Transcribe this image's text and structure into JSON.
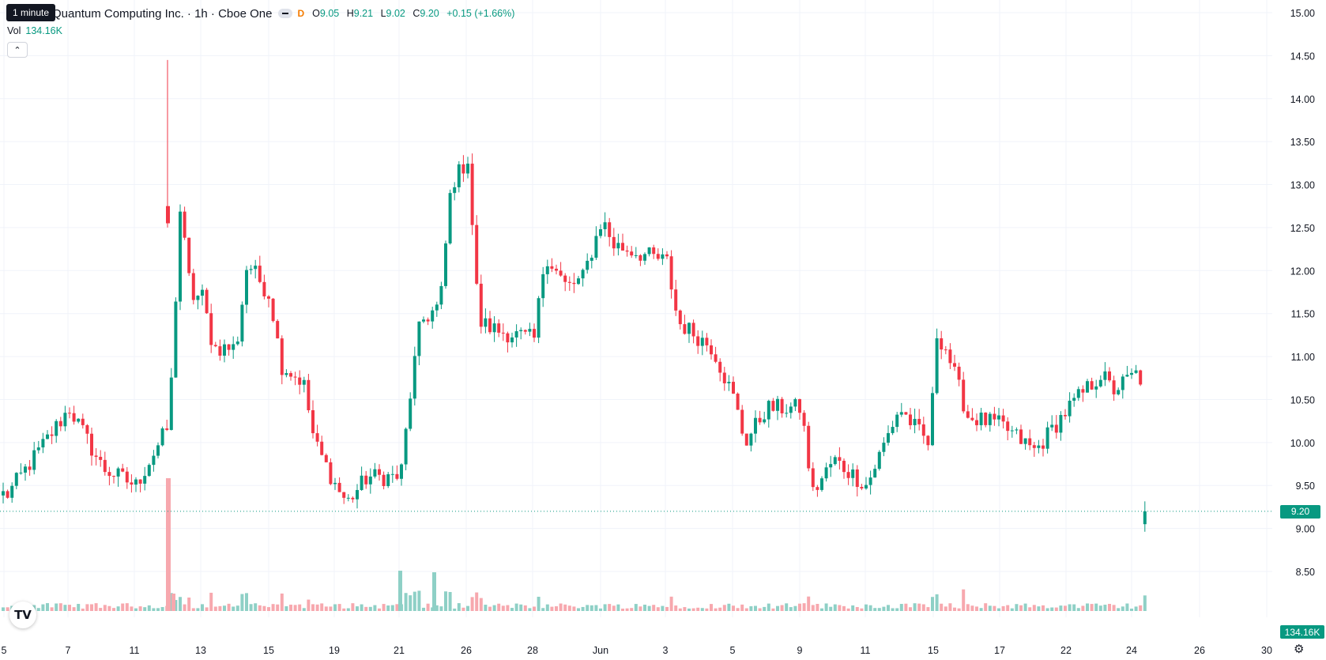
{
  "header": {
    "title": "Quantum Computing Inc. · 1h · Cboe One",
    "tooltip": "1 minute",
    "d_badge": "D",
    "ohlc": {
      "o_label": "O",
      "o": "9.05",
      "h_label": "H",
      "h": "9.21",
      "l_label": "L",
      "l": "9.02",
      "c_label": "C",
      "c": "9.20",
      "change": "+0.15 (+1.66%)"
    }
  },
  "volume_legend": {
    "label": "Vol",
    "value": "134.16K"
  },
  "price_tags": {
    "last_price": "9.20",
    "last_volume": "134.16K"
  },
  "colors": {
    "up": "#089981",
    "down": "#f23645",
    "up_volume": "#8ed0c6",
    "down_volume": "#f7a8ae",
    "grid": "#f0f3fa",
    "last_price_line": "#089981"
  },
  "icons": {
    "logo": "tradingview-logo-icon",
    "settings": "gear-icon",
    "collapse": "chevron-up-icon"
  },
  "chart_data": {
    "type": "candlestick",
    "y_axis": {
      "range": [
        8.3,
        15.05
      ],
      "ticks": [
        "15.00",
        "14.50",
        "14.00",
        "13.50",
        "13.00",
        "12.50",
        "12.00",
        "11.50",
        "11.00",
        "10.50",
        "10.00",
        "9.50",
        "9.00",
        "8.50"
      ]
    },
    "x_axis": {
      "ticks": [
        "5",
        "7",
        "11",
        "13",
        "15",
        "19",
        "21",
        "26",
        "28",
        "Jun",
        "3",
        "5",
        "9",
        "11",
        "15",
        "17",
        "22",
        "24",
        "26",
        "30"
      ]
    },
    "last_price": 9.2,
    "anchors": [
      [
        "5",
        9.4
      ],
      [
        "7",
        10.4
      ],
      [
        "8",
        9.7
      ],
      [
        "11",
        9.5
      ],
      [
        "12",
        10.2
      ],
      [
        "12",
        12.7
      ],
      [
        "12",
        11.7
      ],
      [
        "13",
        11.7
      ],
      [
        "13",
        11.1
      ],
      [
        "14",
        11.1
      ],
      [
        "14",
        12.1
      ],
      [
        "15",
        11.7
      ],
      [
        "15",
        10.9
      ],
      [
        "16",
        10.7
      ],
      [
        "16",
        10.0
      ],
      [
        "19",
        9.5
      ],
      [
        "19",
        9.3
      ],
      [
        "20",
        9.6
      ],
      [
        "21",
        9.6
      ],
      [
        "21",
        10.7
      ],
      [
        "22",
        11.4
      ],
      [
        "23",
        11.6
      ],
      [
        "23",
        13.0
      ],
      [
        "26",
        13.3
      ],
      [
        "26",
        11.4
      ],
      [
        "27",
        11.3
      ],
      [
        "28",
        11.2
      ],
      [
        "28",
        12.2
      ],
      [
        "29",
        11.8
      ],
      [
        "30",
        11.9
      ],
      [
        "Jun",
        12.6
      ],
      [
        "Jun",
        12.3
      ],
      [
        "3",
        12.1
      ],
      [
        "3",
        11.4
      ],
      [
        "4",
        11.2
      ],
      [
        "4",
        11.1
      ],
      [
        "5",
        10.5
      ],
      [
        "5",
        10.0
      ],
      [
        "6",
        10.4
      ],
      [
        "9",
        10.4
      ],
      [
        "9",
        9.4
      ],
      [
        "10",
        9.8
      ],
      [
        "11",
        9.5
      ],
      [
        "12",
        10.4
      ],
      [
        "13",
        9.95
      ],
      [
        "15",
        11.3
      ],
      [
        "15",
        11.1
      ],
      [
        "16",
        10.3
      ],
      [
        "17",
        10.2
      ],
      [
        "18",
        9.9
      ],
      [
        "19",
        10.4
      ],
      [
        "22",
        10.8
      ],
      [
        "22",
        10.6
      ],
      [
        "23",
        10.8
      ],
      [
        "24",
        10.4
      ],
      [
        "24",
        10.0
      ],
      [
        "25",
        9.7
      ],
      [
        "25",
        9.4
      ],
      [
        "26",
        9.2
      ],
      [
        "26",
        9.1
      ],
      [
        "27",
        9.2
      ]
    ],
    "spike_candle": {
      "date": "12",
      "high": 14.45
    },
    "volume_spikes": [
      {
        "date": "12",
        "value": "tall"
      },
      {
        "date": "21",
        "value": "high"
      },
      {
        "date": "23",
        "value": "high"
      }
    ]
  }
}
